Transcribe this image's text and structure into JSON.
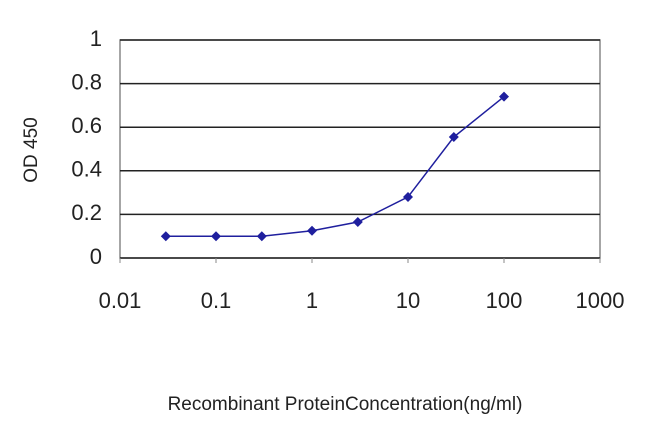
{
  "chart_data": {
    "type": "line",
    "x_label": "Recombinant ProteinConcentration(ng/ml)",
    "y_label": "OD 450",
    "x": [
      0.03,
      0.1,
      0.3,
      1,
      3,
      10,
      30,
      100
    ],
    "values": [
      0.1,
      0.1,
      0.1,
      0.125,
      0.165,
      0.28,
      0.555,
      0.74
    ],
    "color": "#1f1f9e",
    "xscale": "log",
    "xlim": [
      0.01,
      1000
    ],
    "xticks": [
      0.01,
      0.1,
      1,
      10,
      100,
      1000
    ],
    "ylim": [
      0,
      1
    ],
    "yticks": [
      0,
      0.2,
      0.4,
      0.6,
      0.8,
      1
    ],
    "grid": true
  }
}
